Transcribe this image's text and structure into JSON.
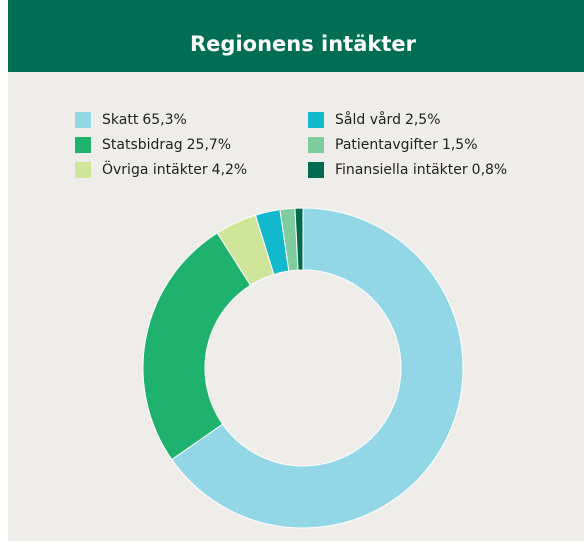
{
  "chart_data": {
    "type": "donut",
    "title": "Regionens intäkter",
    "series": [
      {
        "name": "Skatt",
        "color": "#93d7e6",
        "values": [
          65.3
        ],
        "value_labels": [
          "65,3%"
        ]
      },
      {
        "name": "Statsbidrag",
        "color": "#1fb26e",
        "values": [
          25.7
        ],
        "value_labels": [
          "25,7%"
        ]
      },
      {
        "name": "Övriga intäkter",
        "color": "#cfe59a",
        "values": [
          4.2
        ],
        "value_labels": [
          "4,2%"
        ]
      },
      {
        "name": "Såld vård",
        "color": "#12b8cc",
        "values": [
          2.5
        ],
        "value_labels": [
          "2,5%"
        ]
      },
      {
        "name": "Patientavgifter",
        "color": "#7fcc9f",
        "values": [
          1.5
        ],
        "value_labels": [
          "1,5%"
        ]
      },
      {
        "name": "Finansiella intäkter",
        "color": "#006b4f",
        "values": [
          0.8
        ],
        "value_labels": [
          "0,8%"
        ]
      }
    ]
  }
}
